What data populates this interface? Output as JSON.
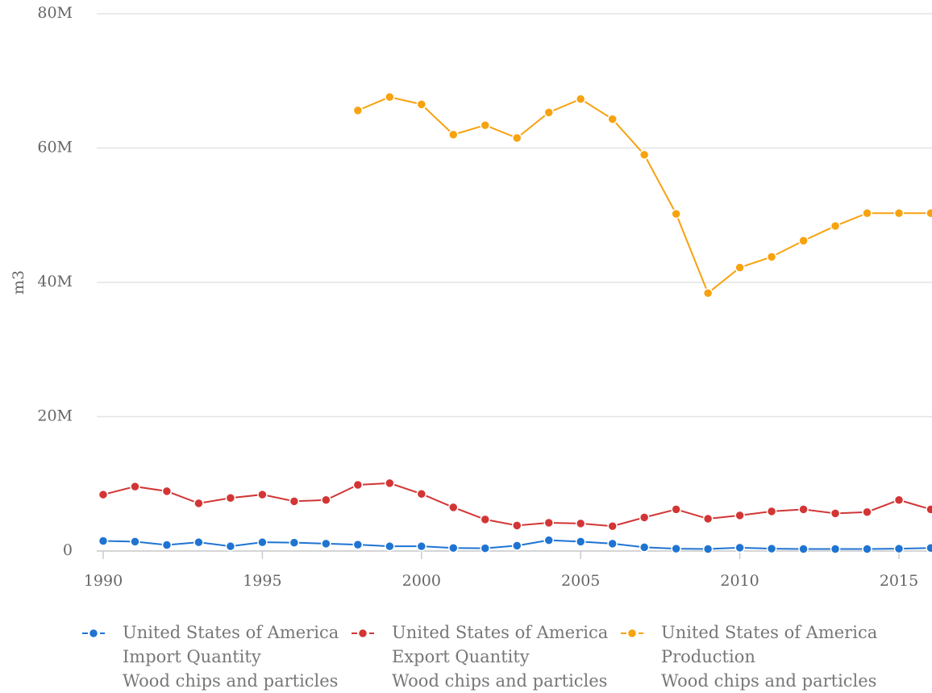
{
  "chart_data": {
    "type": "line",
    "y_label": "m3",
    "x": [
      1990,
      1991,
      1992,
      1993,
      1994,
      1995,
      1996,
      1997,
      1998,
      1999,
      2000,
      2001,
      2002,
      2003,
      2004,
      2005,
      2006,
      2007,
      2008,
      2009,
      2010,
      2011,
      2012,
      2013,
      2014,
      2015,
      2016
    ],
    "xlim": [
      1990,
      2016
    ],
    "xticks": [
      1990,
      1995,
      2000,
      2005,
      2010,
      2015
    ],
    "ylim": [
      0,
      80000000
    ],
    "yticks": [
      {
        "value": 0,
        "label": "0"
      },
      {
        "value": 20000000,
        "label": "20M"
      },
      {
        "value": 40000000,
        "label": "40M"
      },
      {
        "value": 60000000,
        "label": "60M"
      },
      {
        "value": 80000000,
        "label": "80M"
      }
    ],
    "grid": true,
    "legend": "bottom",
    "series": [
      {
        "name": "United States of America\nImport Quantity\nWood chips and particles",
        "color": "#1f74d2",
        "values": [
          1500000,
          1400000,
          900000,
          1300000,
          700000,
          1300000,
          1250000,
          1100000,
          950000,
          700000,
          700000,
          450000,
          400000,
          800000,
          1600000,
          1400000,
          1100000,
          550000,
          350000,
          300000,
          500000,
          350000,
          300000,
          300000,
          300000,
          350000,
          450000
        ]
      },
      {
        "name": "United States of America\nExport Quantity\nWood chips and particles",
        "color": "#d33535",
        "values": [
          8400000,
          9600000,
          8900000,
          7100000,
          7900000,
          8400000,
          7400000,
          7600000,
          9850000,
          10100000,
          8500000,
          6500000,
          4700000,
          3800000,
          4200000,
          4100000,
          3700000,
          5000000,
          6200000,
          4800000,
          5300000,
          5900000,
          6200000,
          5600000,
          5800000,
          7600000,
          6200000
        ]
      },
      {
        "name": "United States of America\nProduction\nWood chips and particles",
        "color": "#f7a20f",
        "values": [
          null,
          null,
          null,
          null,
          null,
          null,
          null,
          null,
          65600000,
          67600000,
          66500000,
          62000000,
          63400000,
          61500000,
          65300000,
          67300000,
          64300000,
          59000000,
          50200000,
          38400000,
          42200000,
          43800000,
          46200000,
          48400000,
          50300000,
          50300000,
          50300000
        ]
      }
    ]
  }
}
